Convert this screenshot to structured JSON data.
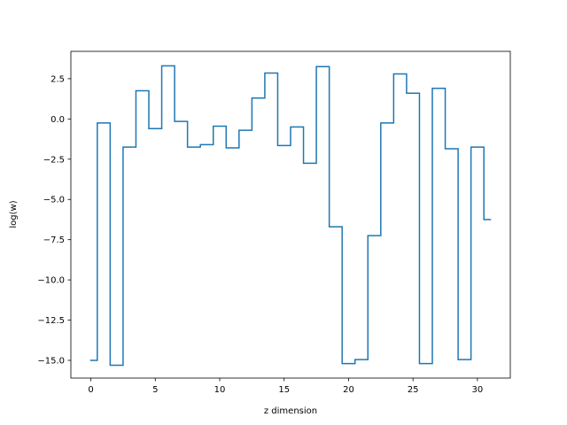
{
  "colors": {
    "series": "#1f77b4",
    "axes": "#000000",
    "background": "#ffffff"
  },
  "chart_data": {
    "type": "line",
    "drawstyle": "steps-mid",
    "title": "",
    "xlabel": "z dimension",
    "ylabel": "log(w)",
    "xlim": [
      -1.55,
      32.55
    ],
    "ylim": [
      -16.1,
      4.2
    ],
    "grid": false,
    "x_ticks": [
      0,
      5,
      10,
      15,
      20,
      25,
      30
    ],
    "x_tick_labels": [
      "0",
      "5",
      "10",
      "15",
      "20",
      "25",
      "30"
    ],
    "y_ticks": [
      2.5,
      0.0,
      -2.5,
      -5.0,
      -7.5,
      -10.0,
      -12.5,
      -15.0
    ],
    "y_tick_labels": [
      "2.5",
      "0.0",
      "−2.5",
      "−5.0",
      "−7.5",
      "−10.0",
      "−12.5",
      "−15.0"
    ],
    "series": [
      {
        "x": [
          0,
          1,
          2,
          3,
          4,
          5,
          6,
          7,
          8,
          9,
          10,
          11,
          12,
          13,
          14,
          15,
          16,
          17,
          18,
          19,
          20,
          21,
          22,
          23,
          24,
          25,
          26,
          27,
          28,
          29,
          30,
          31
        ],
        "values": [
          -15.0,
          -0.25,
          -15.3,
          -1.75,
          1.75,
          -0.6,
          3.3,
          -0.15,
          -1.75,
          -1.6,
          -0.45,
          -1.8,
          -0.7,
          1.3,
          2.85,
          -1.65,
          -0.5,
          -2.75,
          3.25,
          -6.7,
          -15.2,
          -14.95,
          -7.25,
          -0.25,
          2.8,
          1.6,
          -15.2,
          1.9,
          -1.85,
          -14.95,
          -1.75,
          -6.25
        ]
      }
    ]
  }
}
